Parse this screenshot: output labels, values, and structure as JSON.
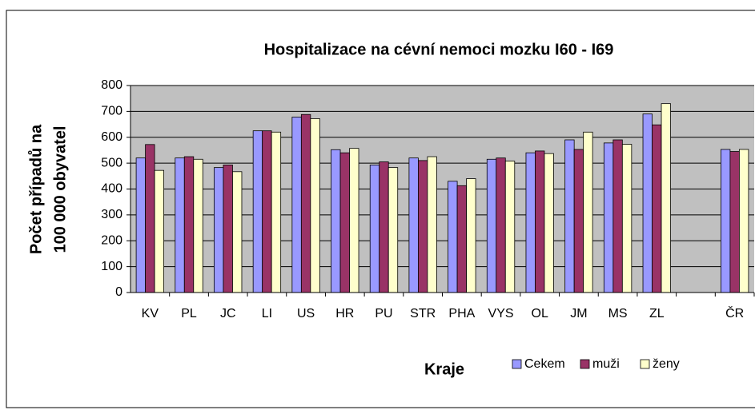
{
  "chart_data": {
    "type": "bar",
    "title": "Hospitalizace na cévní nemoci mozku  I60 - I69",
    "y_label": [
      "Počet případů na",
      "100 000 obyvatel"
    ],
    "x_label": "Kraje",
    "categories": [
      "KV",
      "PL",
      "JC",
      "LI",
      "US",
      "HR",
      "PU",
      "STR",
      "PHA",
      "VYS",
      "OL",
      "JM",
      "MS",
      "ZL",
      null,
      "ČR"
    ],
    "series": [
      {
        "name": "Cekem",
        "color": "#9999ff",
        "values": [
          520,
          520,
          483,
          625,
          678,
          552,
          493,
          520,
          430,
          515,
          540,
          590,
          578,
          690,
          null,
          553
        ]
      },
      {
        "name": "muži",
        "color": "#993366",
        "values": [
          572,
          525,
          493,
          625,
          688,
          540,
          505,
          510,
          413,
          520,
          547,
          553,
          590,
          648,
          null,
          545
        ]
      },
      {
        "name": "ženy",
        "color": "#ffffcc",
        "values": [
          472,
          515,
          467,
          620,
          672,
          557,
          483,
          525,
          440,
          508,
          537,
          620,
          573,
          730,
          null,
          553
        ]
      }
    ],
    "ylim": [
      0,
      800
    ],
    "yticks": [
      0,
      100,
      200,
      300,
      400,
      500,
      600,
      700,
      800
    ],
    "grid": true,
    "plot_background": "#c0c0c0"
  }
}
